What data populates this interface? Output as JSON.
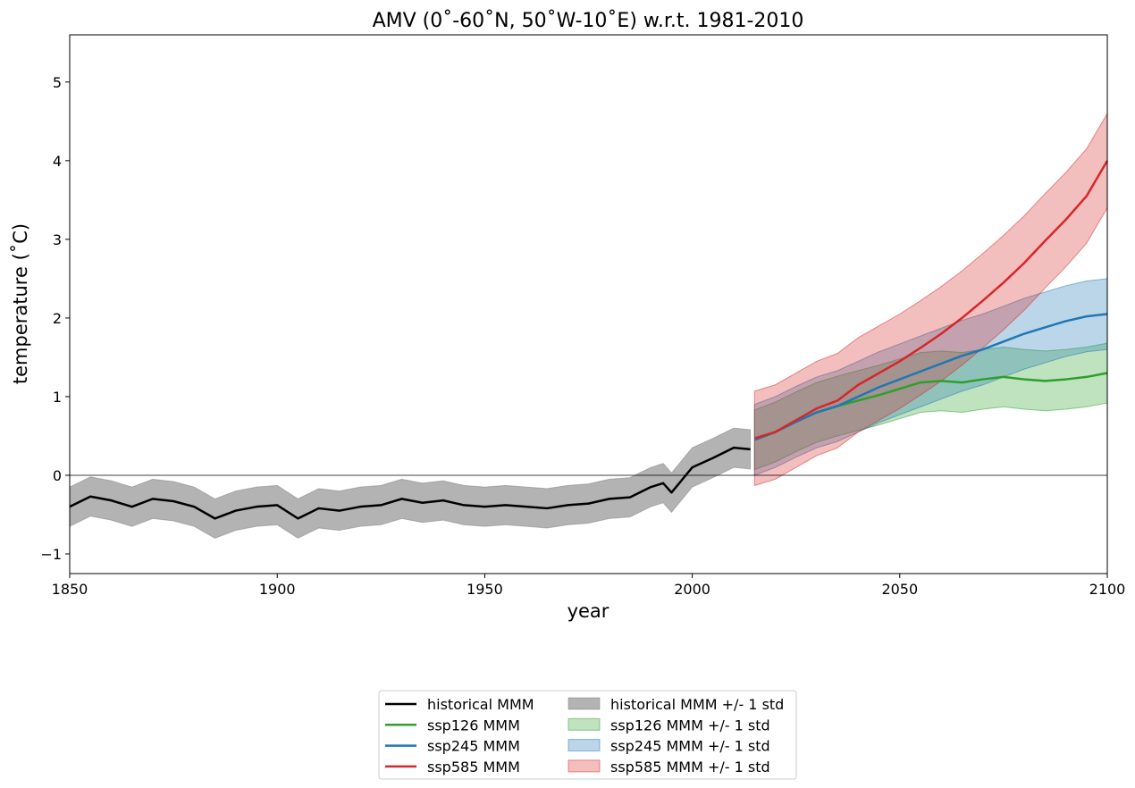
{
  "chart_data": {
    "type": "line",
    "title": "AMV (0˚-60˚N, 50˚W-10˚E) w.r.t. 1981-2010",
    "xlabel": "year",
    "ylabel": "temperature (˚C)",
    "xlim": [
      1850,
      2100
    ],
    "ylim": [
      -1.25,
      5.6
    ],
    "xticks": [
      1850,
      1900,
      1950,
      2000,
      2050,
      2100
    ],
    "yticks": [
      -1,
      0,
      1,
      2,
      3,
      4,
      5
    ],
    "ytick_labels": [
      "−1",
      "0",
      "1",
      "2",
      "3",
      "4",
      "5"
    ],
    "zero_line": true,
    "grid": false,
    "legend_position": "below plot, centered, two columns",
    "legend_entries": [
      "historical MMM",
      "ssp126 MMM",
      "ssp245 MMM",
      "ssp585 MMM",
      "historical MMM +/- 1 std",
      "ssp126 MMM +/- 1 std",
      "ssp245 MMM +/- 1 std",
      "ssp585 MMM +/- 1 std"
    ],
    "series": [
      {
        "name": "historical MMM",
        "color": "#000000",
        "band_color": "#808080",
        "std": 0.25,
        "x": [
          1850,
          1855,
          1860,
          1865,
          1870,
          1875,
          1880,
          1885,
          1890,
          1895,
          1900,
          1905,
          1910,
          1915,
          1920,
          1925,
          1930,
          1935,
          1940,
          1945,
          1950,
          1955,
          1960,
          1965,
          1970,
          1975,
          1980,
          1985,
          1990,
          1993,
          1995,
          2000,
          2005,
          2010,
          2014
        ],
        "y": [
          -0.4,
          -0.27,
          -0.32,
          -0.4,
          -0.3,
          -0.33,
          -0.4,
          -0.55,
          -0.45,
          -0.4,
          -0.38,
          -0.55,
          -0.42,
          -0.45,
          -0.4,
          -0.38,
          -0.3,
          -0.35,
          -0.32,
          -0.38,
          -0.4,
          -0.38,
          -0.4,
          -0.42,
          -0.38,
          -0.36,
          -0.3,
          -0.28,
          -0.15,
          -0.1,
          -0.22,
          0.1,
          0.22,
          0.35,
          0.33
        ]
      },
      {
        "name": "ssp126 MMM",
        "color": "#2ca02c",
        "band_color": "#2ca02c",
        "std": 0.38,
        "x": [
          2015,
          2020,
          2025,
          2030,
          2035,
          2040,
          2045,
          2050,
          2055,
          2060,
          2065,
          2070,
          2075,
          2080,
          2085,
          2090,
          2095,
          2100
        ],
        "y": [
          0.45,
          0.55,
          0.68,
          0.8,
          0.88,
          0.95,
          1.02,
          1.1,
          1.18,
          1.2,
          1.18,
          1.22,
          1.25,
          1.22,
          1.2,
          1.22,
          1.25,
          1.3
        ]
      },
      {
        "name": "ssp245 MMM",
        "color": "#1f77b4",
        "band_color": "#1f77b4",
        "std": 0.45,
        "x": [
          2015,
          2020,
          2025,
          2030,
          2035,
          2040,
          2045,
          2050,
          2055,
          2060,
          2065,
          2070,
          2075,
          2080,
          2085,
          2090,
          2095,
          2100
        ],
        "y": [
          0.45,
          0.55,
          0.68,
          0.8,
          0.88,
          1.0,
          1.12,
          1.22,
          1.32,
          1.42,
          1.52,
          1.6,
          1.7,
          1.8,
          1.88,
          1.96,
          2.02,
          2.05
        ]
      },
      {
        "name": "ssp585 MMM",
        "color": "#d62728",
        "band_color": "#d62728",
        "std": 0.6,
        "x": [
          2015,
          2020,
          2025,
          2030,
          2035,
          2040,
          2045,
          2050,
          2055,
          2060,
          2065,
          2070,
          2075,
          2080,
          2085,
          2090,
          2095,
          2100
        ],
        "y": [
          0.47,
          0.55,
          0.7,
          0.85,
          0.95,
          1.15,
          1.3,
          1.45,
          1.62,
          1.8,
          2.0,
          2.22,
          2.45,
          2.7,
          2.98,
          3.25,
          3.55,
          4.0
        ]
      }
    ]
  }
}
